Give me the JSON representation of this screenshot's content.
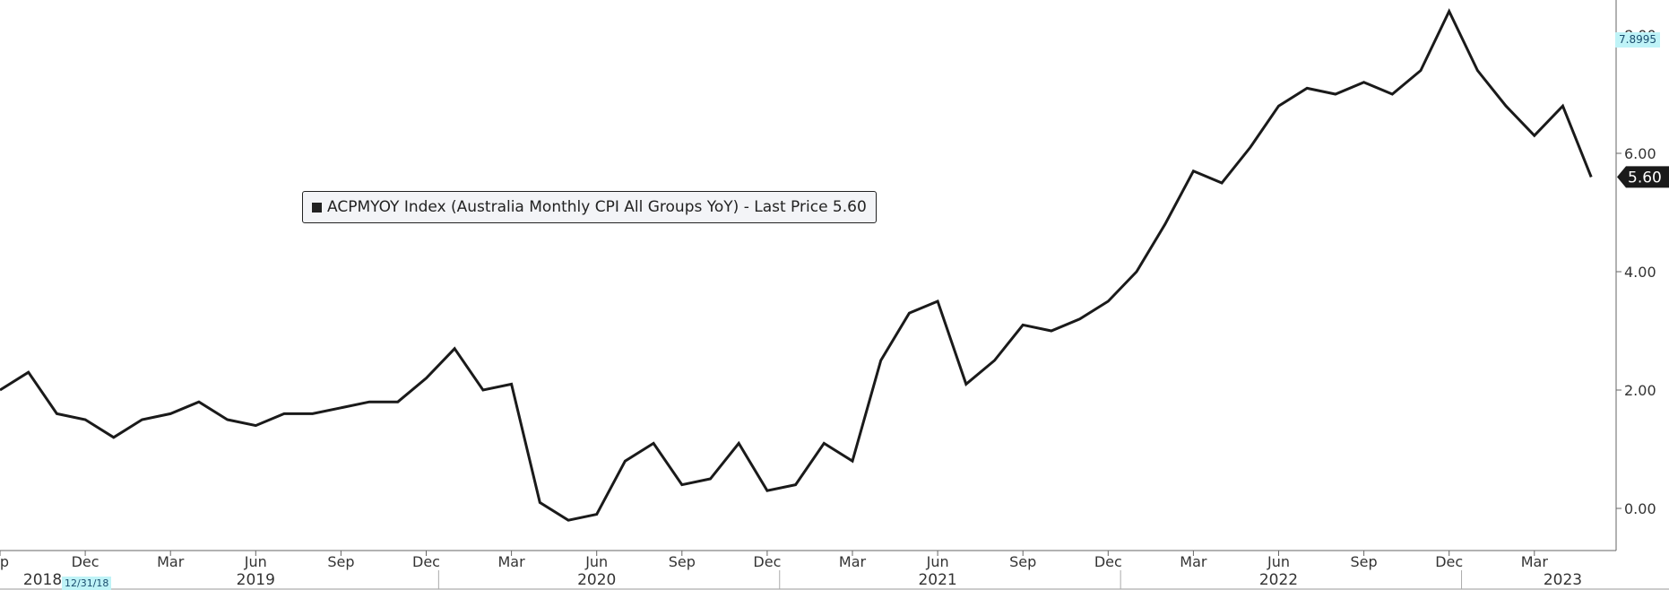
{
  "legend": {
    "text": "ACPMYOY Index (Australia Monthly CPI All Groups YoY) - Last Price 5.60"
  },
  "badges": {
    "top_right_value": "7.8995",
    "last_price_tag": "5.60",
    "date_badge": "12/31/18"
  },
  "colors": {
    "line": "#1a1a1a",
    "badge_cyan": "#bff3f7",
    "last_price_bg": "#1a1a1a"
  },
  "chart_data": {
    "type": "line",
    "title": "",
    "xlabel": "",
    "ylabel": "",
    "ylim": [
      -0.7,
      8.6
    ],
    "y_ticks": [
      "0.00",
      "2.00",
      "4.00",
      "6.00",
      "8.00"
    ],
    "y_axis_position": "right",
    "grid": false,
    "legend_position": "center-left",
    "x_month_ticks": [
      {
        "label": "ep",
        "index": 0
      },
      {
        "label": "Dec",
        "index": 3
      },
      {
        "label": "Mar",
        "index": 6
      },
      {
        "label": "Jun",
        "index": 9
      },
      {
        "label": "Sep",
        "index": 12
      },
      {
        "label": "Dec",
        "index": 15
      },
      {
        "label": "Mar",
        "index": 18
      },
      {
        "label": "Jun",
        "index": 21
      },
      {
        "label": "Sep",
        "index": 24
      },
      {
        "label": "Dec",
        "index": 27
      },
      {
        "label": "Mar",
        "index": 30
      },
      {
        "label": "Jun",
        "index": 33
      },
      {
        "label": "Sep",
        "index": 36
      },
      {
        "label": "Dec",
        "index": 39
      },
      {
        "label": "Mar",
        "index": 42
      },
      {
        "label": "Jun",
        "index": 45
      },
      {
        "label": "Sep",
        "index": 48
      },
      {
        "label": "Dec",
        "index": 51
      },
      {
        "label": "Mar",
        "index": 54
      }
    ],
    "x_year_labels": [
      {
        "label": "2018",
        "index": 1.5
      },
      {
        "label": "2019",
        "index": 9
      },
      {
        "label": "2020",
        "index": 21
      },
      {
        "label": "2021",
        "index": 33
      },
      {
        "label": "2022",
        "index": 45
      },
      {
        "label": "2023",
        "index": 55
      }
    ],
    "series": [
      {
        "x": [
          "2018-09",
          "2018-10",
          "2018-11",
          "2018-12",
          "2019-01",
          "2019-02",
          "2019-03",
          "2019-04",
          "2019-05",
          "2019-06",
          "2019-07",
          "2019-08",
          "2019-09",
          "2019-10",
          "2019-11",
          "2019-12",
          "2020-01",
          "2020-02",
          "2020-03",
          "2020-04",
          "2020-05",
          "2020-06",
          "2020-07",
          "2020-08",
          "2020-09",
          "2020-10",
          "2020-11",
          "2020-12",
          "2021-01",
          "2021-02",
          "2021-03",
          "2021-04",
          "2021-05",
          "2021-06",
          "2021-07",
          "2021-08",
          "2021-09",
          "2021-10",
          "2021-11",
          "2021-12",
          "2022-01",
          "2022-02",
          "2022-03",
          "2022-04",
          "2022-05",
          "2022-06",
          "2022-07",
          "2022-08",
          "2022-09",
          "2022-10",
          "2022-11",
          "2022-12",
          "2023-01",
          "2023-02",
          "2023-03",
          "2023-04",
          "2023-05"
        ],
        "values": [
          2.0,
          2.3,
          1.6,
          1.5,
          1.2,
          1.5,
          1.6,
          1.8,
          1.5,
          1.4,
          1.6,
          1.6,
          1.7,
          1.8,
          1.8,
          2.2,
          2.7,
          2.0,
          2.1,
          0.1,
          -0.2,
          -0.1,
          0.8,
          1.1,
          0.4,
          0.5,
          1.1,
          0.3,
          0.4,
          1.1,
          0.8,
          2.5,
          3.3,
          3.5,
          2.1,
          2.5,
          3.1,
          3.0,
          3.2,
          3.5,
          4.0,
          4.8,
          5.7,
          5.5,
          6.1,
          6.8,
          7.1,
          7.0,
          7.2,
          7.0,
          7.4,
          8.4,
          7.4,
          6.8,
          6.3,
          6.8,
          5.6
        ]
      }
    ]
  }
}
